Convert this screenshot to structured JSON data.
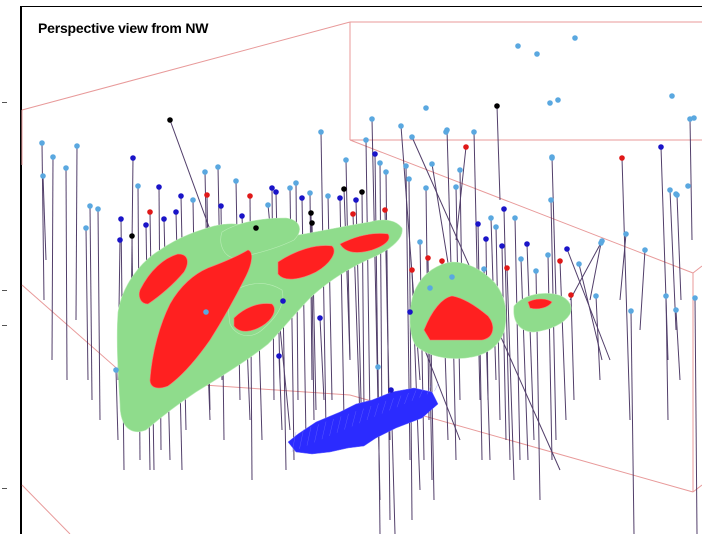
{
  "title": "Perspective view from NW",
  "colors": {
    "background": "#ffffff",
    "frame": "#000000",
    "bounding_box": "#e89a9a",
    "shell": "#8fdc8c",
    "high_grade": "#ff2020",
    "blue_body": "#2b2bff",
    "drillhole_trace": "#3f2a5a",
    "collar_light_blue": "#5aa8e0",
    "collar_dark_blue": "#1a14c8",
    "collar_red": "#e01818",
    "collar_black": "#000000"
  },
  "legend_items": []
}
